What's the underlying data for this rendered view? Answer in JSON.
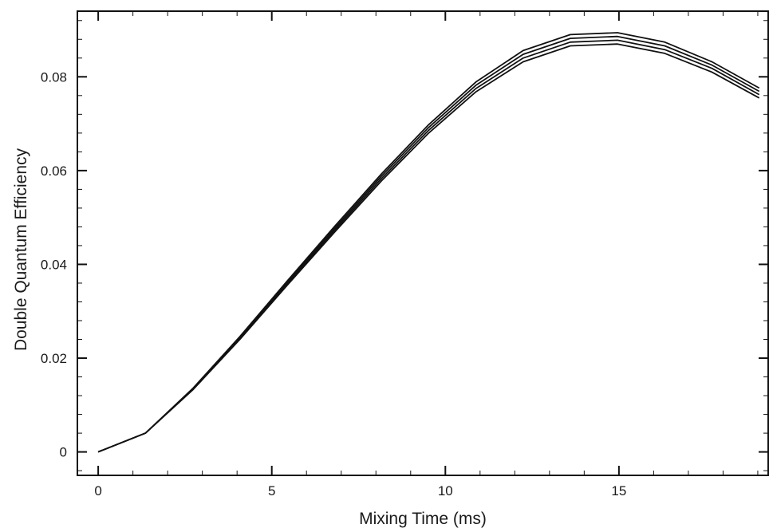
{
  "chart_data": {
    "type": "line",
    "title": "",
    "xlabel": "Mixing Time (ms)",
    "ylabel": "Double Quantum Efficiency",
    "xlim": [
      -0.6,
      19.3
    ],
    "ylim": [
      -0.005,
      0.094
    ],
    "x_ticks": [
      0,
      5,
      10,
      15
    ],
    "x_tick_labels": [
      "0",
      "5",
      "10",
      "15"
    ],
    "y_ticks": [
      0,
      0.02,
      0.04,
      0.06,
      0.08
    ],
    "y_tick_labels": [
      "0",
      "0.02",
      "0.04",
      "0.06",
      "0.08"
    ],
    "x_minor_tick_step": 1,
    "y_minor_tick_step": 0.004,
    "grid": false,
    "legend": "none",
    "line_color": "#111111",
    "x": [
      0,
      1.36,
      2.72,
      4.08,
      5.44,
      6.8,
      8.16,
      9.52,
      10.88,
      12.24,
      13.6,
      14.96,
      16.32,
      17.68,
      19.04
    ],
    "series": [
      {
        "values": [
          0,
          0.004,
          0.0132,
          0.024,
          0.0355,
          0.0468,
          0.0578,
          0.068,
          0.0768,
          0.0832,
          0.0866,
          0.087,
          0.085,
          0.081,
          0.0755
        ]
      },
      {
        "values": [
          0,
          0.004,
          0.0133,
          0.0242,
          0.0358,
          0.0472,
          0.0583,
          0.0686,
          0.0775,
          0.084,
          0.0874,
          0.0878,
          0.0858,
          0.0818,
          0.0762
        ]
      },
      {
        "values": [
          0,
          0.004,
          0.0134,
          0.0244,
          0.0361,
          0.0476,
          0.0588,
          0.0692,
          0.0782,
          0.0848,
          0.0882,
          0.0886,
          0.0866,
          0.0825,
          0.0769
        ]
      },
      {
        "values": [
          0,
          0.004,
          0.0135,
          0.0246,
          0.0364,
          0.048,
          0.0593,
          0.0698,
          0.0789,
          0.0856,
          0.089,
          0.0894,
          0.0874,
          0.0832,
          0.0776
        ]
      }
    ]
  }
}
